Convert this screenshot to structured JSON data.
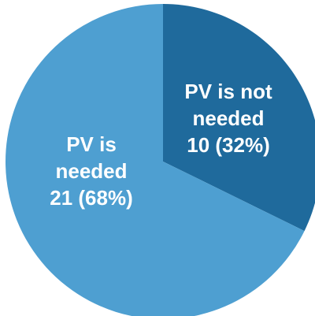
{
  "chart_data": {
    "type": "pie",
    "title": "",
    "start_angle_deg": 0,
    "direction": "clockwise",
    "slices": [
      {
        "label_lines": [
          "PV is not",
          "needed",
          "10 (32%)"
        ],
        "value": 10,
        "percent": 32,
        "color": "#1f6a9c"
      },
      {
        "label_lines": [
          "PV is",
          "needed",
          "21 (68%)"
        ],
        "value": 21,
        "percent": 68,
        "color": "#4e9fd1"
      }
    ]
  }
}
